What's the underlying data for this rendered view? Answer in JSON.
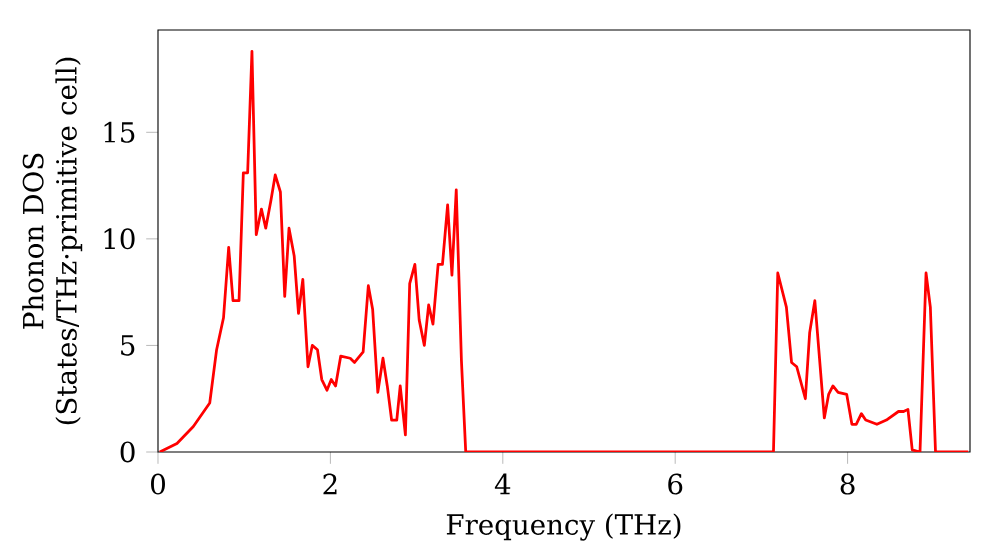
{
  "chart_data": {
    "type": "line",
    "xlabel": "Frequency (THz)",
    "ylabel": "Phonon DOS (States/THz·primitive cell)",
    "xlim": [
      0,
      9.42
    ],
    "ylim": [
      0,
      19.8
    ],
    "xticks": [
      0,
      2,
      4,
      6,
      8
    ],
    "yticks": [
      0,
      5,
      10,
      15
    ],
    "series": [
      {
        "color": "#ff0000",
        "x": [
          0.02,
          0.22,
          0.41,
          0.6,
          0.68,
          0.76,
          0.82,
          0.87,
          0.94,
          0.99,
          1.04,
          1.09,
          1.14,
          1.2,
          1.25,
          1.31,
          1.36,
          1.42,
          1.47,
          1.52,
          1.58,
          1.63,
          1.68,
          1.74,
          1.79,
          1.85,
          1.9,
          1.96,
          2.01,
          2.06,
          2.12,
          2.23,
          2.28,
          2.38,
          2.44,
          2.49,
          2.55,
          2.61,
          2.66,
          2.71,
          2.77,
          2.81,
          2.87,
          2.92,
          2.98,
          3.03,
          3.09,
          3.14,
          3.19,
          3.25,
          3.3,
          3.36,
          3.41,
          3.46,
          3.52,
          3.57,
          7.12,
          7.14,
          7.19,
          7.29,
          7.35,
          7.41,
          7.51,
          7.56,
          7.62,
          7.73,
          7.78,
          7.83,
          7.89,
          7.99,
          8.05,
          8.1,
          8.16,
          8.21,
          8.34,
          8.45,
          8.59,
          8.65,
          8.7,
          8.75,
          8.84,
          8.91,
          8.96,
          9.02,
          9.4
        ],
        "values": [
          0,
          0.4,
          1.2,
          2.3,
          4.8,
          6.3,
          9.6,
          7.1,
          7.1,
          13.1,
          13.1,
          18.8,
          10.2,
          11.4,
          10.5,
          11.8,
          13.0,
          12.2,
          7.3,
          10.5,
          9.2,
          6.5,
          8.1,
          4.0,
          5.0,
          4.8,
          3.4,
          2.9,
          3.4,
          3.1,
          4.5,
          4.4,
          4.2,
          4.7,
          7.8,
          6.7,
          2.8,
          4.4,
          3.1,
          1.5,
          1.5,
          3.1,
          0.8,
          7.9,
          8.8,
          6.2,
          5.0,
          6.9,
          6.0,
          8.8,
          8.8,
          11.6,
          8.3,
          12.3,
          4.3,
          0,
          0,
          0,
          8.4,
          6.8,
          4.2,
          4.0,
          2.5,
          5.6,
          7.1,
          1.6,
          2.7,
          3.1,
          2.8,
          2.7,
          1.3,
          1.3,
          1.8,
          1.5,
          1.3,
          1.5,
          1.9,
          1.9,
          2.0,
          0.1,
          0,
          8.4,
          6.8,
          0,
          0
        ]
      }
    ]
  }
}
